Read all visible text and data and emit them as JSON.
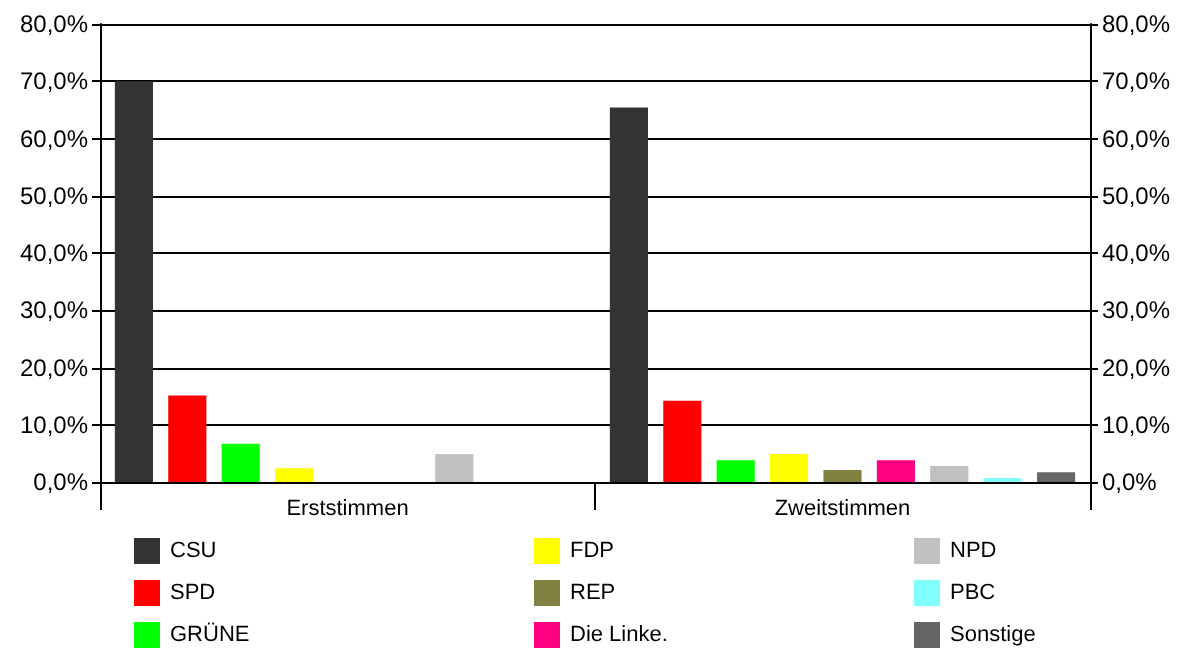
{
  "chart_data": {
    "type": "bar",
    "categories": [
      "Erststimmen",
      "Zweitstimmen"
    ],
    "series": [
      {
        "name": "CSU",
        "color": "#333333",
        "values": [
          70.0,
          65.4
        ]
      },
      {
        "name": "SPD",
        "color": "#ff0000",
        "values": [
          15.1,
          14.2
        ]
      },
      {
        "name": "GRÜNE",
        "color": "#00ff00",
        "values": [
          6.7,
          3.8
        ]
      },
      {
        "name": "FDP",
        "color": "#ffff00",
        "values": [
          2.4,
          4.9
        ]
      },
      {
        "name": "REP",
        "color": "#808040",
        "values": [
          null,
          2.1
        ]
      },
      {
        "name": "Die Linke.",
        "color": "#ff0080",
        "values": [
          null,
          3.8
        ]
      },
      {
        "name": "NPD",
        "color": "#c0c0c0",
        "values": [
          4.9,
          2.8
        ]
      },
      {
        "name": "PBC",
        "color": "#80ffff",
        "values": [
          null,
          0.7
        ]
      },
      {
        "name": "Sonstige",
        "color": "#666666",
        "values": [
          null,
          1.7
        ]
      }
    ],
    "ylim": [
      0,
      80
    ],
    "yticks": [
      {
        "value": 0,
        "label": "0,0%"
      },
      {
        "value": 10,
        "label": "10,0%"
      },
      {
        "value": 20,
        "label": "20,0%"
      },
      {
        "value": 30,
        "label": "30,0%"
      },
      {
        "value": 40,
        "label": "40,0%"
      },
      {
        "value": 50,
        "label": "50,0%"
      },
      {
        "value": 60,
        "label": "60,0%"
      },
      {
        "value": 70,
        "label": "70,0%"
      },
      {
        "value": 80,
        "label": "80,0%"
      }
    ],
    "y2lim": [
      0,
      80
    ],
    "y2ticks": [
      {
        "value": 0,
        "label": "0,0%"
      },
      {
        "value": 10,
        "label": "10,0%"
      },
      {
        "value": 20,
        "label": "20,0%"
      },
      {
        "value": 30,
        "label": "30,0%"
      },
      {
        "value": 40,
        "label": "40,0%"
      },
      {
        "value": 50,
        "label": "50,0%"
      },
      {
        "value": 60,
        "label": "60,0%"
      },
      {
        "value": 70,
        "label": "70,0%"
      },
      {
        "value": 80,
        "label": "80,0%"
      }
    ],
    "grid": "y",
    "legend": "bottom"
  }
}
